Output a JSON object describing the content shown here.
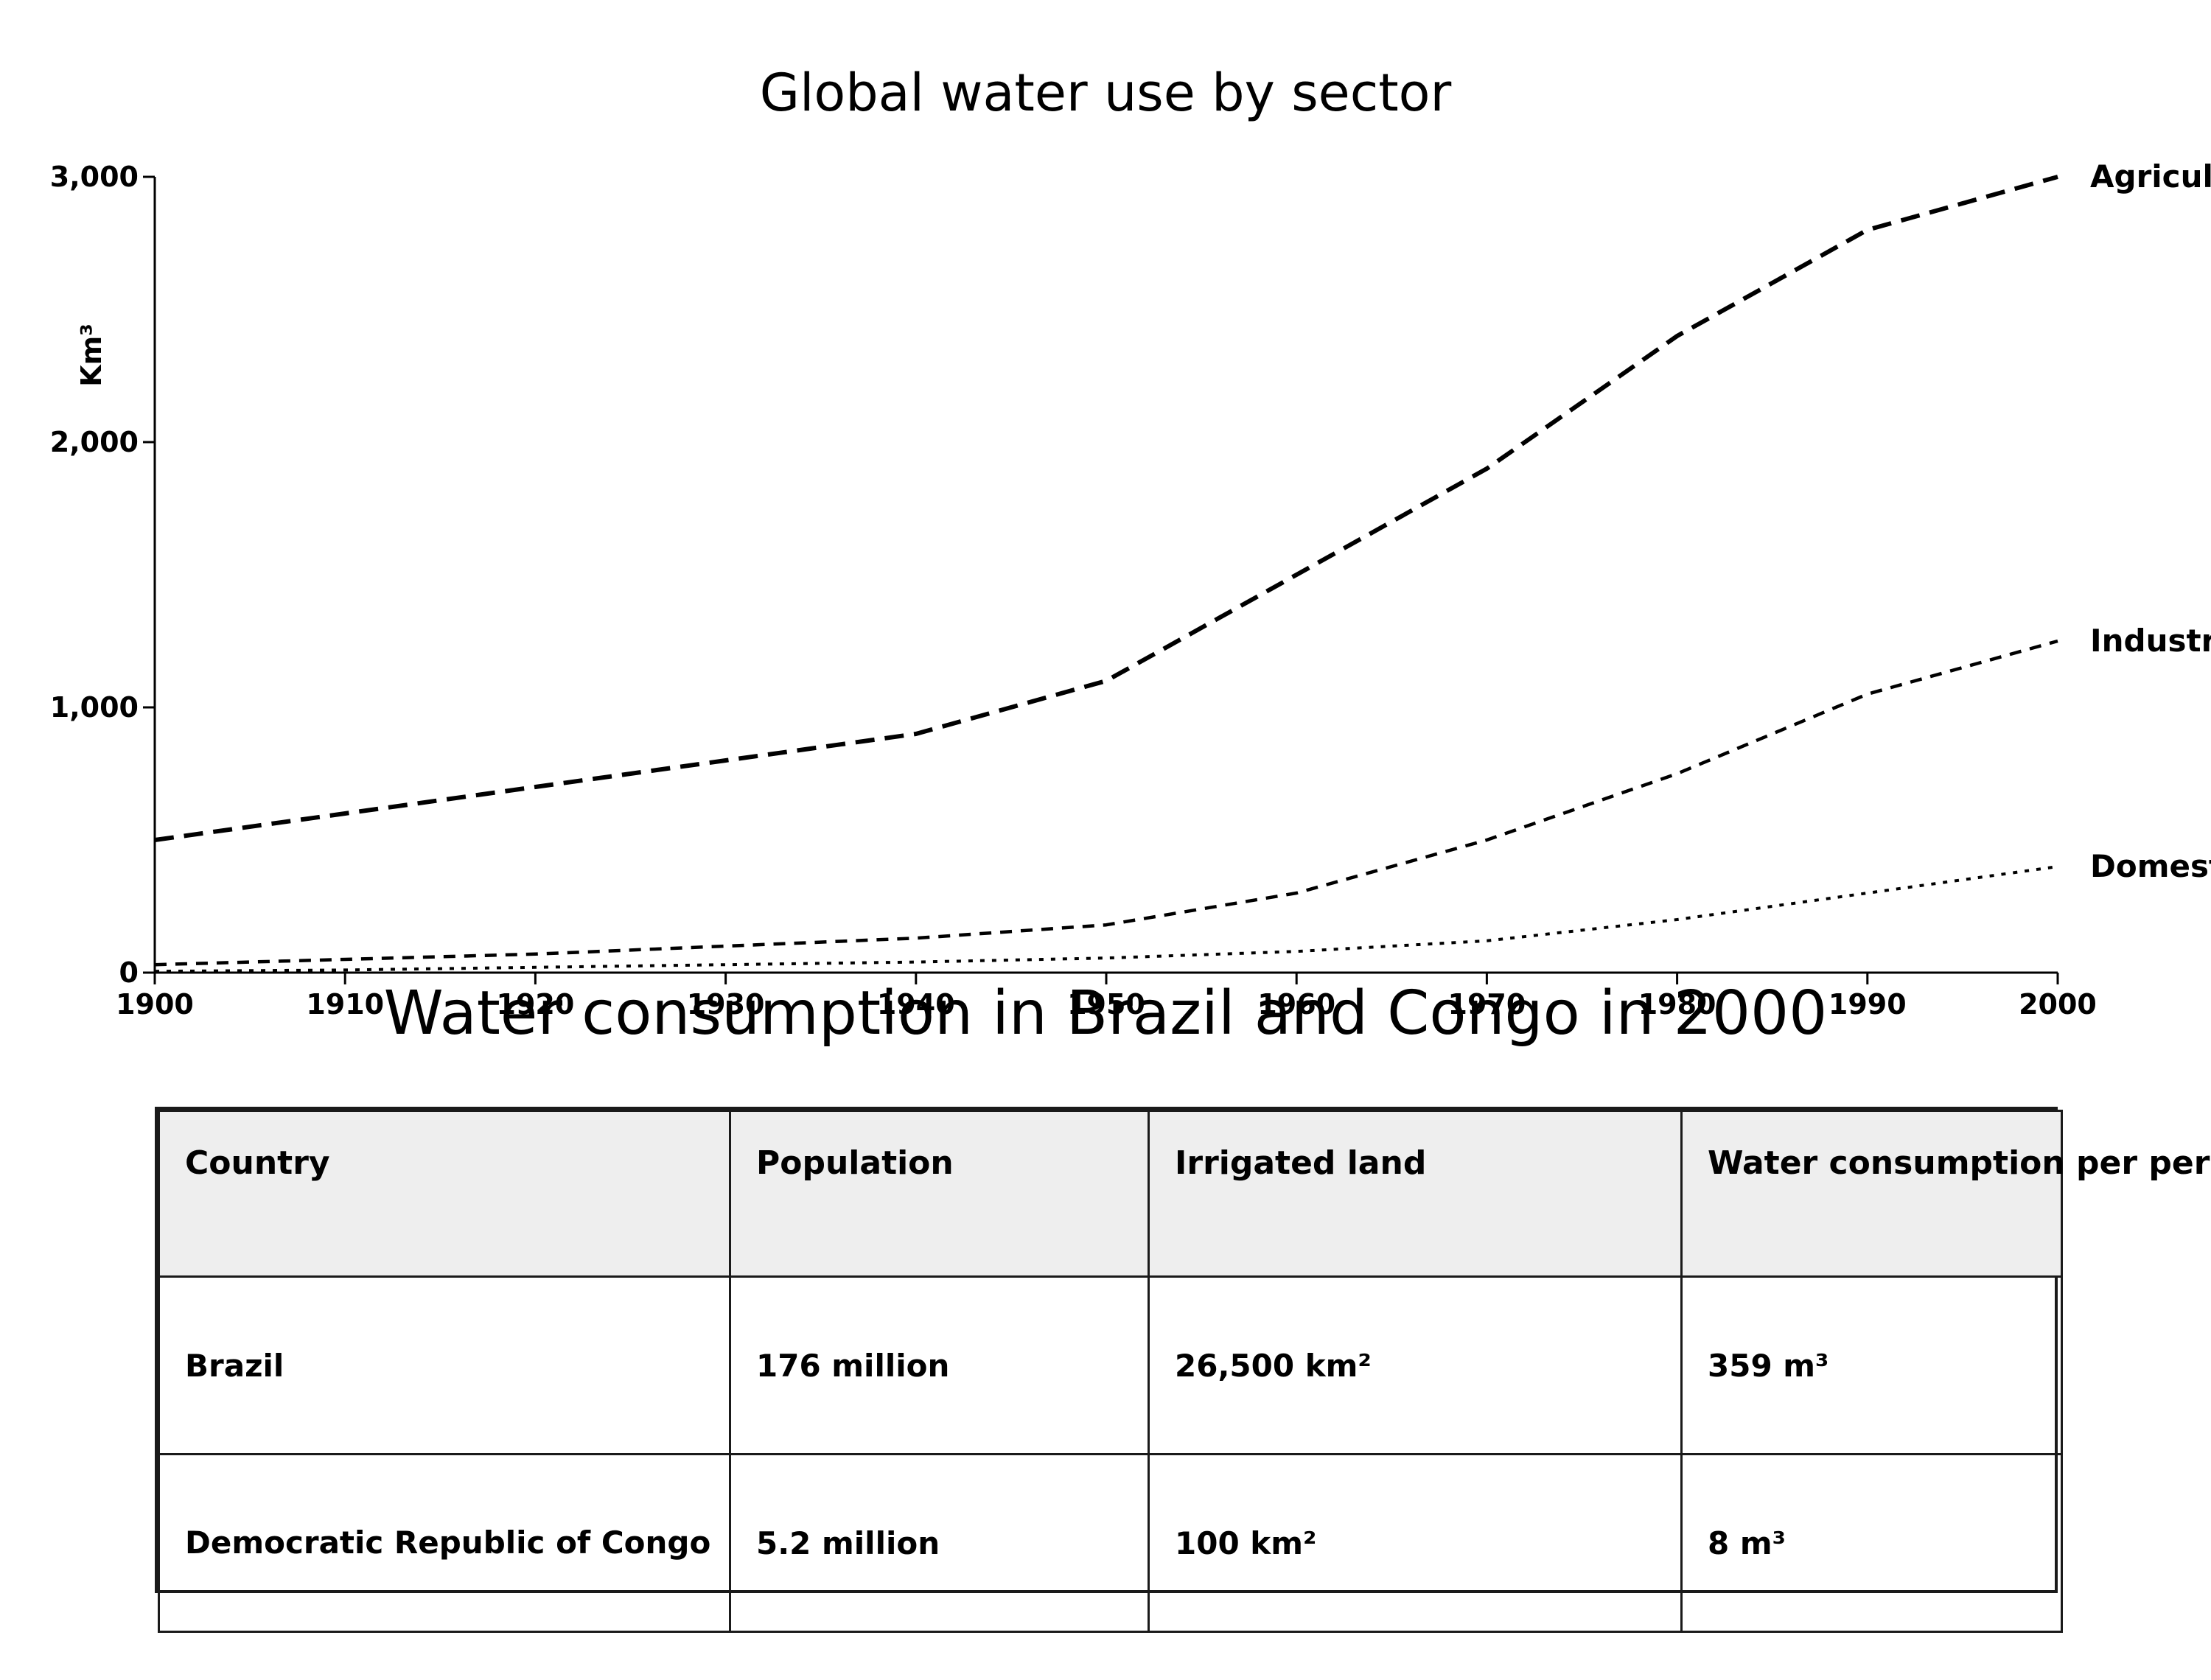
{
  "chart_data": [
    {
      "type": "line",
      "title": "Global water use by sector",
      "ylabel": "Km³",
      "xlabel": "",
      "x": [
        1900,
        1910,
        1920,
        1930,
        1940,
        1950,
        1960,
        1970,
        1980,
        1990,
        2000
      ],
      "xlim": [
        1900,
        2000
      ],
      "ylim": [
        0,
        3000
      ],
      "x_ticks": [
        "1900",
        "1910",
        "1920",
        "1930",
        "1940",
        "1950",
        "1960",
        "1970",
        "1980",
        "1990",
        "2000"
      ],
      "y_ticks": [
        "0",
        "1,000",
        "2,000",
        "3,000"
      ],
      "y_tick_values": [
        0,
        1000,
        2000,
        3000
      ],
      "grid": false,
      "legend": "direct labels at line ends",
      "series": [
        {
          "name": "Agriculture",
          "dash": "long-dash",
          "values": [
            500,
            600,
            700,
            800,
            900,
            1100,
            1500,
            1900,
            2400,
            2800,
            3000
          ]
        },
        {
          "name": "Industrial",
          "dash": "short-dash",
          "values": [
            30,
            50,
            70,
            100,
            130,
            180,
            300,
            500,
            750,
            1050,
            1250
          ]
        },
        {
          "name": "Domestic",
          "dash": "dotted",
          "values": [
            5,
            10,
            20,
            30,
            40,
            55,
            80,
            120,
            200,
            300,
            400
          ]
        }
      ]
    },
    {
      "type": "table",
      "title": "Water consumption in Brazil and Congo in 2000",
      "columns": [
        "Country",
        "Population",
        "Irrigated land",
        "Water consumption per person"
      ],
      "rows": [
        [
          "Brazil",
          "176 million",
          "26,500 km²",
          "359 m³"
        ],
        [
          "Democratic Republic of Congo",
          "5.2 million",
          "100 km²",
          "8 m³"
        ]
      ]
    }
  ]
}
